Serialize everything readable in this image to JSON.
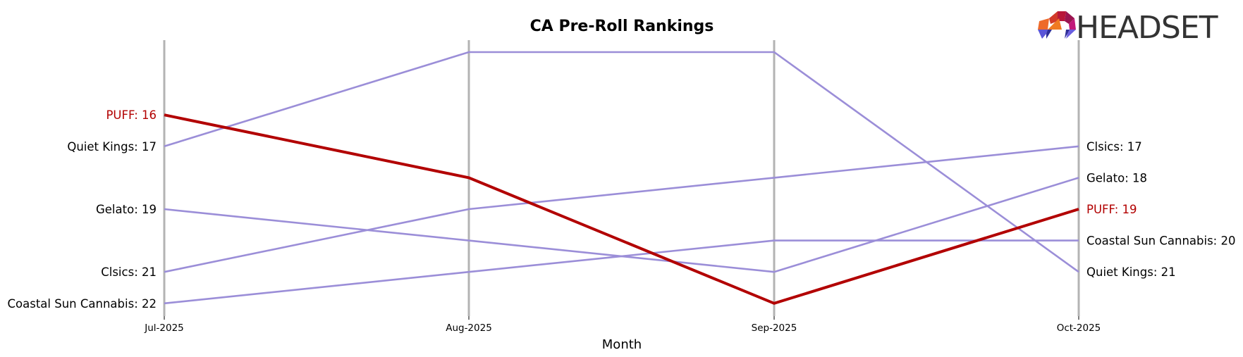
{
  "chart_data": {
    "type": "line",
    "title": "CA Pre-Roll Rankings",
    "xlabel": "Month",
    "ylabel": "",
    "categories": [
      "Jul-2025",
      "Aug-2025",
      "Sep-2025",
      "Oct-2025"
    ],
    "y_inverted": true,
    "ylim": [
      14,
      22
    ],
    "grid": false,
    "legend": "none (direct labels at first and last points)",
    "highlight_series": "PUFF",
    "series": [
      {
        "name": "PUFF",
        "values": [
          16,
          18,
          22,
          19
        ],
        "color": "#b20000",
        "highlight": true
      },
      {
        "name": "Quiet Kings",
        "values": [
          17,
          14,
          14,
          21
        ],
        "color": "#9b8ed8"
      },
      {
        "name": "Gelato",
        "values": [
          19,
          20,
          21,
          18
        ],
        "color": "#9b8ed8"
      },
      {
        "name": "Clsics",
        "values": [
          21,
          19,
          18,
          17
        ],
        "color": "#9b8ed8"
      },
      {
        "name": "Coastal Sun Cannabis",
        "values": [
          22,
          21,
          20,
          20
        ],
        "color": "#9b8ed8"
      }
    ],
    "left_labels": [
      "PUFF: 16",
      "Quiet Kings: 17",
      "Gelato: 19",
      "Clsics: 21",
      "Coastal Sun Cannabis: 22"
    ],
    "right_labels": [
      "Clsics: 17",
      "Gelato: 18",
      "PUFF: 19",
      "Coastal Sun Cannabis: 20",
      "Quiet Kings: 21"
    ]
  },
  "logo": {
    "text": "HEADSET"
  },
  "colors": {
    "highlight": "#b20000",
    "other": "#9b8ed8",
    "axis": "#b3b3b3",
    "text": "#000000"
  }
}
